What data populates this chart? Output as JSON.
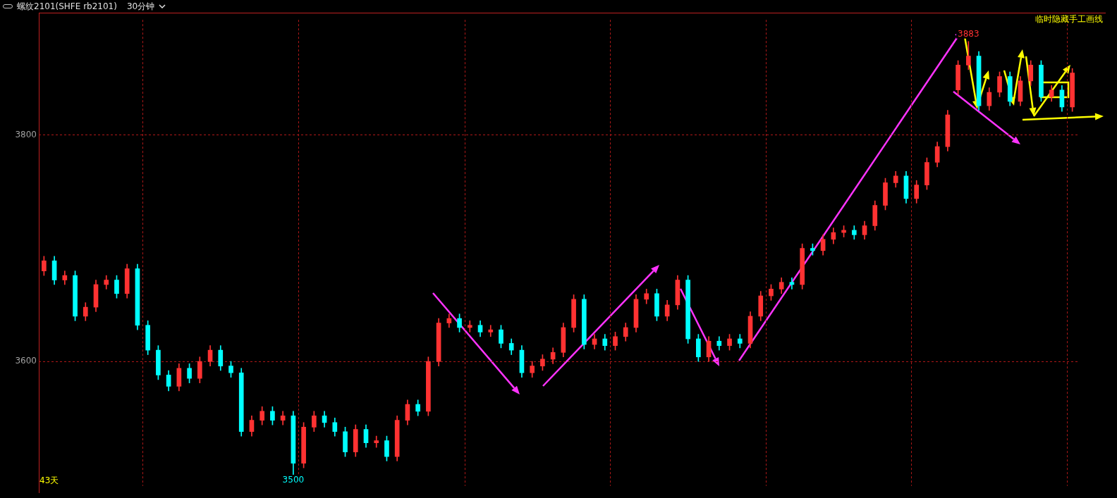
{
  "chart_data": {
    "type": "candlestick",
    "title": "螺纹2101(SHFE rb2101)",
    "subtitle": "30分钟",
    "categories": [
      null,
      null,
      null,
      null,
      null,
      null,
      null,
      null,
      null,
      null,
      null,
      null,
      null,
      null,
      null,
      null,
      null,
      null,
      null,
      null,
      null,
      null,
      null,
      null,
      null,
      null,
      null,
      null,
      null,
      null,
      null,
      null,
      null,
      null,
      null,
      null,
      null,
      null,
      null,
      null,
      null,
      null,
      null,
      null,
      null,
      null,
      null,
      null,
      null,
      null,
      null,
      null,
      null,
      null,
      null,
      null,
      null,
      null,
      null,
      null,
      null,
      null,
      null,
      null,
      null,
      null,
      null,
      null,
      null,
      null,
      null,
      null,
      null,
      null,
      null,
      null,
      null,
      null,
      null,
      null,
      null,
      null,
      null,
      null,
      null,
      null,
      null,
      null,
      null,
      null,
      null,
      null,
      null,
      null,
      null,
      null,
      null,
      null,
      null,
      null
    ],
    "ohlc": [
      [
        3680,
        3693,
        3676,
        3689
      ],
      [
        3689,
        3693,
        3668,
        3672
      ],
      [
        3672,
        3680,
        3668,
        3676
      ],
      [
        3676,
        3680,
        3636,
        3640
      ],
      [
        3640,
        3652,
        3636,
        3648
      ],
      [
        3648,
        3672,
        3644,
        3668
      ],
      [
        3668,
        3676,
        3664,
        3672
      ],
      [
        3672,
        3676,
        3656,
        3660
      ],
      [
        3660,
        3686,
        3656,
        3682
      ],
      [
        3682,
        3686,
        3628,
        3632
      ],
      [
        3632,
        3636,
        3606,
        3610
      ],
      [
        3610,
        3614,
        3584,
        3588
      ],
      [
        3588,
        3592,
        3574,
        3578
      ],
      [
        3578,
        3598,
        3574,
        3594
      ],
      [
        3594,
        3598,
        3581,
        3585
      ],
      [
        3585,
        3604,
        3581,
        3600
      ],
      [
        3600,
        3614,
        3596,
        3610
      ],
      [
        3610,
        3614,
        3592,
        3596
      ],
      [
        3596,
        3600,
        3586,
        3590
      ],
      [
        3590,
        3594,
        3534,
        3538
      ],
      [
        3538,
        3552,
        3534,
        3548
      ],
      [
        3548,
        3560,
        3544,
        3556
      ],
      [
        3556,
        3560,
        3544,
        3548
      ],
      [
        3548,
        3556,
        3544,
        3552
      ],
      [
        3552,
        3556,
        3500,
        3510
      ],
      [
        3510,
        3546,
        3506,
        3542
      ],
      [
        3542,
        3556,
        3538,
        3552
      ],
      [
        3552,
        3556,
        3542,
        3546
      ],
      [
        3546,
        3550,
        3534,
        3538
      ],
      [
        3538,
        3542,
        3516,
        3520
      ],
      [
        3520,
        3544,
        3516,
        3540
      ],
      [
        3540,
        3544,
        3524,
        3528
      ],
      [
        3528,
        3534,
        3524,
        3530
      ],
      [
        3530,
        3534,
        3512,
        3516
      ],
      [
        3516,
        3552,
        3512,
        3548
      ],
      [
        3548,
        3566,
        3544,
        3562
      ],
      [
        3562,
        3566,
        3552,
        3556
      ],
      [
        3556,
        3604,
        3552,
        3600
      ],
      [
        3600,
        3638,
        3596,
        3634
      ],
      [
        3634,
        3642,
        3630,
        3638
      ],
      [
        3638,
        3642,
        3626,
        3630
      ],
      [
        3630,
        3636,
        3626,
        3632
      ],
      [
        3632,
        3636,
        3622,
        3626
      ],
      [
        3626,
        3632,
        3622,
        3628
      ],
      [
        3628,
        3632,
        3612,
        3616
      ],
      [
        3616,
        3620,
        3606,
        3610
      ],
      [
        3610,
        3614,
        3586,
        3590
      ],
      [
        3590,
        3600,
        3586,
        3596
      ],
      [
        3596,
        3606,
        3592,
        3602
      ],
      [
        3602,
        3612,
        3598,
        3608
      ],
      [
        3608,
        3634,
        3604,
        3630
      ],
      [
        3630,
        3659,
        3626,
        3655
      ],
      [
        3655,
        3659,
        3611,
        3615
      ],
      [
        3615,
        3624,
        3611,
        3620
      ],
      [
        3620,
        3624,
        3610,
        3614
      ],
      [
        3614,
        3626,
        3610,
        3622
      ],
      [
        3622,
        3634,
        3618,
        3630
      ],
      [
        3630,
        3659,
        3626,
        3655
      ],
      [
        3655,
        3664,
        3651,
        3660
      ],
      [
        3660,
        3664,
        3636,
        3640
      ],
      [
        3640,
        3654,
        3636,
        3650
      ],
      [
        3650,
        3676,
        3646,
        3672
      ],
      [
        3672,
        3676,
        3616,
        3620
      ],
      [
        3620,
        3624,
        3600,
        3604
      ],
      [
        3604,
        3622,
        3600,
        3618
      ],
      [
        3618,
        3622,
        3610,
        3614
      ],
      [
        3614,
        3624,
        3610,
        3620
      ],
      [
        3620,
        3624,
        3612,
        3616
      ],
      [
        3616,
        3644,
        3612,
        3640
      ],
      [
        3640,
        3662,
        3636,
        3658
      ],
      [
        3658,
        3668,
        3654,
        3664
      ],
      [
        3664,
        3674,
        3660,
        3670
      ],
      [
        3670,
        3674,
        3664,
        3668
      ],
      [
        3668,
        3704,
        3664,
        3700
      ],
      [
        3700,
        3704,
        3694,
        3698
      ],
      [
        3698,
        3712,
        3694,
        3708
      ],
      [
        3708,
        3718,
        3704,
        3714
      ],
      [
        3714,
        3720,
        3710,
        3716
      ],
      [
        3716,
        3720,
        3708,
        3712
      ],
      [
        3712,
        3724,
        3708,
        3720
      ],
      [
        3720,
        3742,
        3716,
        3738
      ],
      [
        3738,
        3762,
        3734,
        3758
      ],
      [
        3758,
        3768,
        3754,
        3764
      ],
      [
        3764,
        3768,
        3740,
        3744
      ],
      [
        3744,
        3760,
        3740,
        3756
      ],
      [
        3756,
        3780,
        3752,
        3776
      ],
      [
        3776,
        3794,
        3772,
        3790
      ],
      [
        3790,
        3822,
        3786,
        3818
      ],
      [
        3840,
        3866,
        3836,
        3862
      ],
      [
        3862,
        3883,
        3858,
        3870
      ],
      [
        3870,
        3874,
        3822,
        3826
      ],
      [
        3826,
        3842,
        3822,
        3838
      ],
      [
        3838,
        3856,
        3834,
        3852
      ],
      [
        3852,
        3856,
        3826,
        3830
      ],
      [
        3830,
        3852,
        3826,
        3848
      ],
      [
        3848,
        3866,
        3844,
        3862
      ],
      [
        3862,
        3866,
        3830,
        3834
      ],
      [
        3834,
        3844,
        3830,
        3840
      ],
      [
        3840,
        3844,
        3821,
        3825
      ],
      [
        3825,
        3859,
        3821,
        3855
      ]
    ],
    "colors": [
      "#ff3232",
      "#00ffff",
      "#ff3232",
      "#00ffff",
      "#ff3232",
      "#ff3232",
      "#ff3232",
      "#00ffff",
      "#ff3232",
      "#00ffff",
      "#00ffff",
      "#00ffff",
      "#00ffff",
      "#ff3232",
      "#00ffff",
      "#ff3232",
      "#ff3232",
      "#00ffff",
      "#00ffff",
      "#00ffff",
      "#ff3232",
      "#ff3232",
      "#00ffff",
      "#ff3232",
      "#00ffff",
      "#ff3232",
      "#ff3232",
      "#00ffff",
      "#00ffff",
      "#00ffff",
      "#ff3232",
      "#00ffff",
      "#ff3232",
      "#00ffff",
      "#ff3232",
      "#ff3232",
      "#00ffff",
      "#ff3232",
      "#ff3232",
      "#ff3232",
      "#00ffff",
      "#ff3232",
      "#00ffff",
      "#ff3232",
      "#00ffff",
      "#00ffff",
      "#00ffff",
      "#ff3232",
      "#ff3232",
      "#ff3232",
      "#ff3232",
      "#ff3232",
      "#00ffff",
      "#ff3232",
      "#00ffff",
      "#ff3232",
      "#ff3232",
      "#ff3232",
      "#ff3232",
      "#00ffff",
      "#ff3232",
      "#ff3232",
      "#00ffff",
      "#00ffff",
      "#ff3232",
      "#00ffff",
      "#ff3232",
      "#00ffff",
      "#ff3232",
      "#ff3232",
      "#ff3232",
      "#ff3232",
      "#00ffff",
      "#ff3232",
      "#00ffff",
      "#ff3232",
      "#ff3232",
      "#ff3232",
      "#00ffff",
      "#ff3232",
      "#ff3232",
      "#ff3232",
      "#ff3232",
      "#00ffff",
      "#ff3232",
      "#ff3232",
      "#ff3232",
      "#ff3232",
      "#ff3232",
      "#ff3232",
      "#00ffff",
      "#ff3232",
      "#ff3232",
      "#00ffff",
      "#ff3232",
      "#ff3232",
      "#00ffff",
      "#ff3232",
      "#00ffff",
      "#ff3232"
    ],
    "ylim": [
      3490,
      3902
    ],
    "yticks": [
      3600,
      3800
    ],
    "grid": true,
    "annotations": [
      {
        "text": "3883",
        "y": 3883
      },
      {
        "text": "3500",
        "y": 3500
      },
      "43天",
      "临时隐藏手工画线"
    ]
  }
}
